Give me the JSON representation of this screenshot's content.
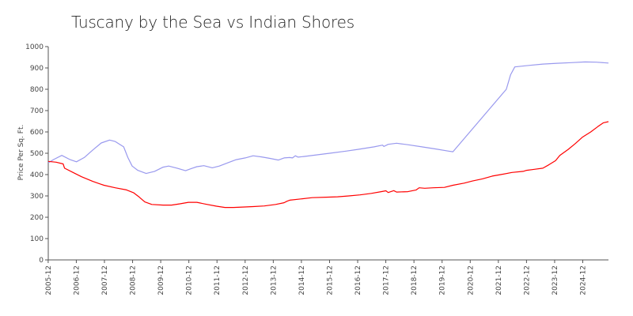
{
  "chart_data": {
    "type": "line",
    "title": "Tuscany by the Sea vs Indian Shores",
    "xlabel": "",
    "ylabel": "Price Per Sq. Ft.",
    "ylim": [
      0,
      1000
    ],
    "yticks": [
      0,
      100,
      200,
      300,
      400,
      500,
      600,
      700,
      800,
      900,
      1000
    ],
    "xlim": [
      2005.92,
      2025.83
    ],
    "xticks": [
      "2005-12",
      "2006-12",
      "2007-12",
      "2008-12",
      "2009-12",
      "2010-12",
      "2011-12",
      "2012-12",
      "2013-12",
      "2014-12",
      "2015-12",
      "2016-12",
      "2017-12",
      "2018-12",
      "2019-12",
      "2020-12",
      "2021-12",
      "2022-12",
      "2023-12",
      "2024-12"
    ],
    "grid": false,
    "legend": "none",
    "series": [
      {
        "color": "#9999ee",
        "points": [
          [
            2005.92,
            455
          ],
          [
            2006.1,
            470
          ],
          [
            2006.4,
            490
          ],
          [
            2006.7,
            470
          ],
          [
            2006.92,
            460
          ],
          [
            2007.2,
            480
          ],
          [
            2007.5,
            515
          ],
          [
            2007.8,
            548
          ],
          [
            2008.1,
            562
          ],
          [
            2008.3,
            555
          ],
          [
            2008.6,
            530
          ],
          [
            2008.75,
            480
          ],
          [
            2008.9,
            440
          ],
          [
            2009.1,
            420
          ],
          [
            2009.4,
            405
          ],
          [
            2009.7,
            415
          ],
          [
            2010.0,
            435
          ],
          [
            2010.2,
            440
          ],
          [
            2010.5,
            430
          ],
          [
            2010.8,
            418
          ],
          [
            2011.0,
            428
          ],
          [
            2011.2,
            437
          ],
          [
            2011.45,
            442
          ],
          [
            2011.75,
            432
          ],
          [
            2012.0,
            440
          ],
          [
            2012.3,
            455
          ],
          [
            2012.6,
            470
          ],
          [
            2012.92,
            478
          ],
          [
            2013.2,
            488
          ],
          [
            2013.5,
            483
          ],
          [
            2013.8,
            476
          ],
          [
            2014.1,
            468
          ],
          [
            2014.3,
            478
          ],
          [
            2014.5,
            480
          ],
          [
            2014.6,
            478
          ],
          [
            2014.7,
            488
          ],
          [
            2014.8,
            482
          ],
          [
            2015.0,
            485
          ],
          [
            2015.5,
            493
          ],
          [
            2015.92,
            500
          ],
          [
            2016.5,
            510
          ],
          [
            2016.92,
            518
          ],
          [
            2017.5,
            530
          ],
          [
            2017.8,
            538
          ],
          [
            2017.85,
            532
          ],
          [
            2018.0,
            542
          ],
          [
            2018.3,
            547
          ],
          [
            2018.7,
            540
          ],
          [
            2019.2,
            530
          ],
          [
            2019.7,
            520
          ],
          [
            2020.15,
            510
          ],
          [
            2020.3,
            507
          ],
          [
            2022.2,
            800
          ],
          [
            2022.35,
            868
          ],
          [
            2022.5,
            905
          ],
          [
            2023.0,
            912
          ],
          [
            2023.5,
            918
          ],
          [
            2024.0,
            922
          ],
          [
            2024.5,
            925
          ],
          [
            2025.0,
            928
          ],
          [
            2025.4,
            927
          ],
          [
            2025.83,
            923
          ]
        ]
      },
      {
        "color": "#ff0000",
        "points": [
          [
            2005.92,
            462
          ],
          [
            2006.2,
            458
          ],
          [
            2006.45,
            450
          ],
          [
            2006.5,
            430
          ],
          [
            2006.8,
            410
          ],
          [
            2007.1,
            390
          ],
          [
            2007.5,
            368
          ],
          [
            2007.9,
            350
          ],
          [
            2008.3,
            338
          ],
          [
            2008.7,
            328
          ],
          [
            2008.95,
            315
          ],
          [
            2009.15,
            295
          ],
          [
            2009.35,
            272
          ],
          [
            2009.6,
            260
          ],
          [
            2010.0,
            257
          ],
          [
            2010.3,
            257
          ],
          [
            2010.6,
            263
          ],
          [
            2010.9,
            270
          ],
          [
            2011.2,
            270
          ],
          [
            2011.5,
            262
          ],
          [
            2011.9,
            252
          ],
          [
            2012.2,
            246
          ],
          [
            2012.5,
            246
          ],
          [
            2012.9,
            248
          ],
          [
            2013.2,
            250
          ],
          [
            2013.6,
            253
          ],
          [
            2014.0,
            260
          ],
          [
            2014.3,
            268
          ],
          [
            2014.4,
            275
          ],
          [
            2014.5,
            280
          ],
          [
            2014.9,
            286
          ],
          [
            2015.3,
            292
          ],
          [
            2015.8,
            294
          ],
          [
            2016.2,
            296
          ],
          [
            2016.6,
            300
          ],
          [
            2017.0,
            305
          ],
          [
            2017.4,
            312
          ],
          [
            2017.75,
            320
          ],
          [
            2017.92,
            324
          ],
          [
            2018.0,
            316
          ],
          [
            2018.2,
            325
          ],
          [
            2018.3,
            318
          ],
          [
            2018.7,
            320
          ],
          [
            2019.0,
            328
          ],
          [
            2019.1,
            338
          ],
          [
            2019.3,
            336
          ],
          [
            2019.6,
            338
          ],
          [
            2020.0,
            340
          ],
          [
            2020.3,
            350
          ],
          [
            2020.7,
            360
          ],
          [
            2021.0,
            370
          ],
          [
            2021.35,
            380
          ],
          [
            2021.7,
            393
          ],
          [
            2022.0,
            400
          ],
          [
            2022.4,
            410
          ],
          [
            2022.8,
            415
          ],
          [
            2022.92,
            420
          ],
          [
            2023.2,
            425
          ],
          [
            2023.5,
            430
          ],
          [
            2023.7,
            445
          ],
          [
            2023.95,
            465
          ],
          [
            2024.1,
            490
          ],
          [
            2024.4,
            518
          ],
          [
            2024.65,
            545
          ],
          [
            2024.9,
            575
          ],
          [
            2025.2,
            600
          ],
          [
            2025.45,
            625
          ],
          [
            2025.65,
            643
          ],
          [
            2025.83,
            648
          ]
        ]
      }
    ]
  }
}
